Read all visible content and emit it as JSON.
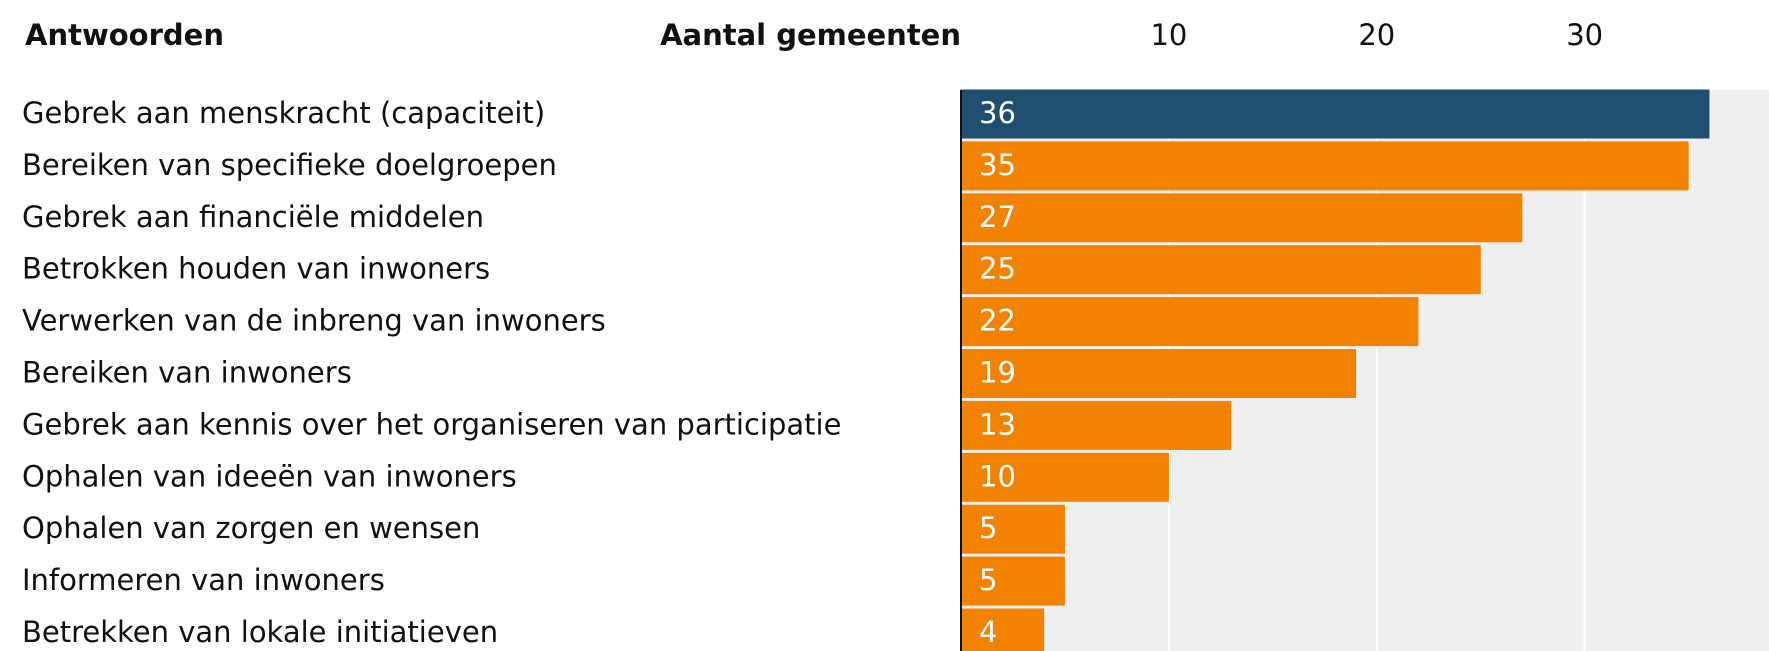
{
  "chart_data": {
    "type": "bar",
    "orientation": "horizontal",
    "ylabel": "Antwoorden",
    "xlabel": "Aantal gemeenten",
    "categories": [
      "Gebrek aan menskracht (capaciteit)",
      "Bereiken van specifieke doelgroepen",
      "Gebrek aan financiële middelen",
      "Betrokken houden van inwoners",
      "Verwerken van de inbreng van inwoners",
      "Bereiken van inwoners",
      "Gebrek aan kennis over het organiseren van participatie",
      "Ophalen van ideeën van inwoners",
      "Ophalen van zorgen en wensen",
      "Informeren van inwoners",
      "Betrekken van lokale initiatieven"
    ],
    "values": [
      36,
      35,
      27,
      25,
      22,
      19,
      13,
      10,
      5,
      5,
      4
    ],
    "colors": [
      "#1f4e70",
      "#f38200",
      "#f38200",
      "#f38200",
      "#f38200",
      "#f38200",
      "#f38200",
      "#f38200",
      "#f38200",
      "#f38200",
      "#f38200"
    ],
    "xlim": [
      0,
      40
    ],
    "xticks": [
      10,
      20,
      30,
      40
    ],
    "grid": true
  }
}
